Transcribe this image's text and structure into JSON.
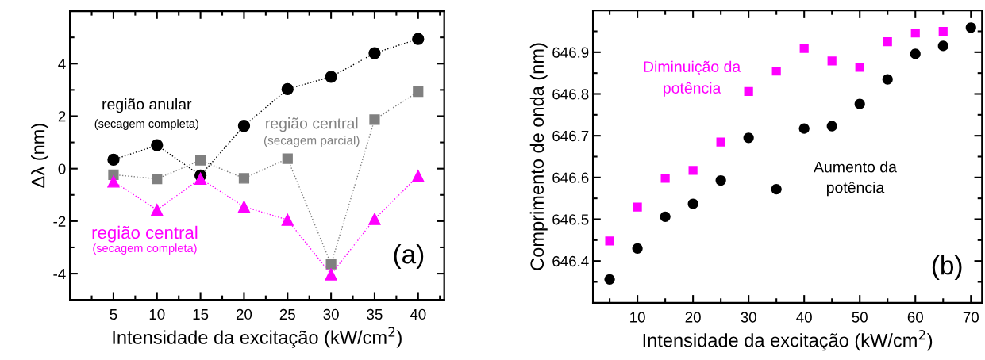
{
  "chart_data": [
    {
      "type": "line",
      "xlabel": "Intensidade da excitação (kW/cm$^{2}$)",
      "ylabel": "Δλ (nm)",
      "x": [
        5,
        10,
        15,
        20,
        25,
        30,
        35,
        40
      ],
      "xlim": [
        0,
        43
      ],
      "xticks": [
        5,
        10,
        15,
        20,
        25,
        30,
        35,
        40
      ],
      "ylim": [
        -5,
        6
      ],
      "yticks": [
        -4,
        -2,
        0,
        2,
        4
      ],
      "line_style": "dotted",
      "grid": false,
      "legend": false,
      "series": [
        {
          "name": "região anular\n(secagem completa)",
          "color": "#000000",
          "marker": "circle",
          "values": [
            0.34,
            0.89,
            -0.26,
            1.63,
            3.03,
            3.5,
            4.4,
            4.94
          ]
        },
        {
          "name": "região central\n(secagem parcial)",
          "color": "#808080",
          "marker": "square",
          "values": [
            -0.23,
            -0.39,
            0.32,
            -0.37,
            0.38,
            -3.64,
            1.87,
            2.93
          ]
        },
        {
          "name": "região central\n(secagem completa)",
          "color": "#ff00ff",
          "marker": "triangle",
          "values": [
            -0.49,
            -1.57,
            -0.38,
            -1.45,
            -1.95,
            -4.03,
            -1.92,
            -0.28
          ]
        }
      ],
      "annotations": [
        "(a)"
      ]
    },
    {
      "type": "scatter",
      "xlabel": "Intensidade da excitação (kW/cm$^{2}$)",
      "ylabel": "Comprimento de onda (nm)",
      "xlim": [
        2,
        72
      ],
      "xticks": [
        10,
        20,
        30,
        40,
        50,
        60,
        70
      ],
      "ylim": [
        646.3,
        647.0
      ],
      "yticks": [
        646.4,
        646.5,
        646.6,
        646.7,
        646.8,
        646.9
      ],
      "grid": false,
      "legend": false,
      "series": [
        {
          "name": "Aumento da\npotência",
          "color": "#000000",
          "marker": "circle",
          "x": [
            5,
            10,
            15,
            20,
            25,
            30,
            35,
            40,
            45,
            50,
            55,
            60,
            65,
            70
          ],
          "values": [
            646.356,
            646.43,
            646.506,
            646.537,
            646.593,
            646.695,
            646.572,
            646.717,
            646.723,
            646.776,
            646.835,
            646.896,
            646.915,
            646.959
          ]
        },
        {
          "name": "Diminuição da\npotência",
          "color": "#ff00ff",
          "marker": "square",
          "x": [
            5,
            10,
            15,
            20,
            25,
            30,
            35,
            40,
            45,
            50,
            55,
            60,
            65
          ],
          "values": [
            646.448,
            646.529,
            646.598,
            646.617,
            646.685,
            646.806,
            646.855,
            646.909,
            646.879,
            646.864,
            646.925,
            646.946,
            646.95
          ]
        }
      ],
      "annotations": [
        "(b)"
      ]
    }
  ]
}
